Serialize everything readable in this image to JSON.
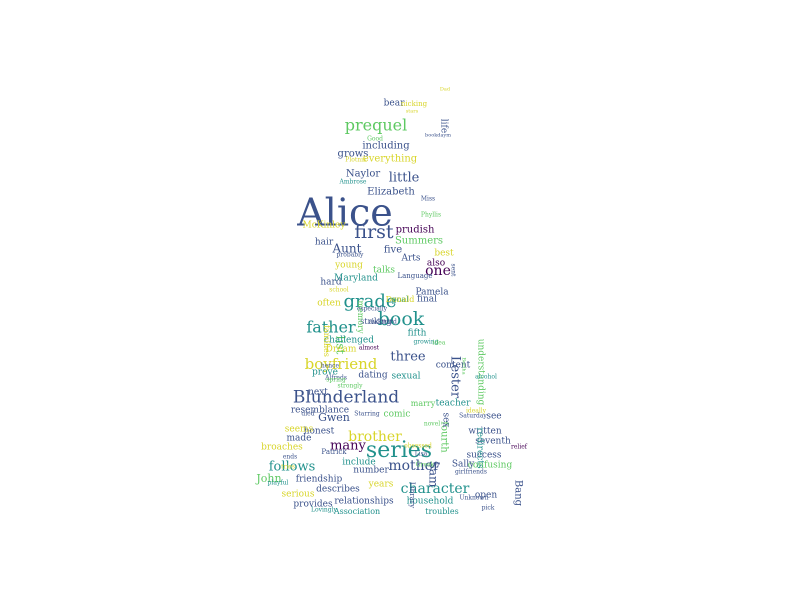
{
  "palette": {
    "dark_purple": "#440154",
    "indigo": "#3b528b",
    "teal": "#21918c",
    "green": "#5ec962",
    "yellow": "#d8d52a"
  },
  "words": [
    {
      "text": "Alice",
      "color": "#3b528b"
    },
    {
      "text": "series",
      "color": "#21918c"
    },
    {
      "text": "Blunderland",
      "color": "#3b528b"
    },
    {
      "text": "grade",
      "color": "#21918c"
    },
    {
      "text": "first",
      "color": "#3b528b"
    },
    {
      "text": "book",
      "color": "#21918c"
    },
    {
      "text": "prequel",
      "color": "#5ec962"
    },
    {
      "text": "father",
      "color": "#21918c"
    },
    {
      "text": "boyfriend",
      "color": "#d8d52a"
    },
    {
      "text": "brother",
      "color": "#d8d52a"
    },
    {
      "text": "mother",
      "color": "#3b528b"
    },
    {
      "text": "character",
      "color": "#21918c"
    },
    {
      "text": "Aunt",
      "color": "#3b528b"
    },
    {
      "text": "one",
      "color": "#440154"
    },
    {
      "text": "many",
      "color": "#440154"
    },
    {
      "text": "follows",
      "color": "#21918c"
    },
    {
      "text": "three",
      "color": "#3b528b"
    },
    {
      "text": "Lester",
      "color": "#3b528b"
    },
    {
      "text": "little",
      "color": "#3b528b"
    },
    {
      "text": "list",
      "color": "#5ec962"
    },
    {
      "text": "Naylor",
      "color": "#3b528b"
    },
    {
      "text": "Elizabeth",
      "color": "#3b528b"
    },
    {
      "text": "including",
      "color": "#3b528b"
    },
    {
      "text": "grows",
      "color": "#3b528b"
    },
    {
      "text": "everything",
      "color": "#d8d52a"
    },
    {
      "text": "prudish",
      "color": "#440154"
    },
    {
      "text": "Summers",
      "color": "#5ec962"
    },
    {
      "text": "hair",
      "color": "#3b528b"
    },
    {
      "text": "five",
      "color": "#3b528b"
    },
    {
      "text": "best",
      "color": "#d8d52a"
    },
    {
      "text": "young",
      "color": "#d8d52a"
    },
    {
      "text": "talks",
      "color": "#5ec962"
    },
    {
      "text": "Maryland",
      "color": "#21918c"
    },
    {
      "text": "hard",
      "color": "#3b528b"
    },
    {
      "text": "often",
      "color": "#d8d52a"
    },
    {
      "text": "Pamela",
      "color": "#3b528b"
    },
    {
      "text": "final",
      "color": "#3b528b"
    },
    {
      "text": "striking",
      "color": "#3b528b"
    },
    {
      "text": "fifth",
      "color": "#21918c"
    },
    {
      "text": "challenged",
      "color": "#21918c"
    },
    {
      "text": "Dream",
      "color": "#d8d52a"
    },
    {
      "text": "prove",
      "color": "#21918c"
    },
    {
      "text": "dating",
      "color": "#3b528b"
    },
    {
      "text": "sexual",
      "color": "#21918c"
    },
    {
      "text": "content",
      "color": "#3b528b"
    },
    {
      "text": "next",
      "color": "#3b528b"
    },
    {
      "text": "resemblance",
      "color": "#3b528b"
    },
    {
      "text": "Gwen",
      "color": "#3b528b"
    },
    {
      "text": "comic",
      "color": "#5ec962"
    },
    {
      "text": "teacher",
      "color": "#21918c"
    },
    {
      "text": "see",
      "color": "#3b528b"
    },
    {
      "text": "honest",
      "color": "#3b528b"
    },
    {
      "text": "seems",
      "color": "#d8d52a"
    },
    {
      "text": "made",
      "color": "#3b528b"
    },
    {
      "text": "broaches",
      "color": "#d8d52a"
    },
    {
      "text": "written",
      "color": "#3b528b"
    },
    {
      "text": "seventh",
      "color": "#3b528b"
    },
    {
      "text": "success",
      "color": "#3b528b"
    },
    {
      "text": "confusing",
      "color": "#5ec962"
    },
    {
      "text": "include",
      "color": "#21918c"
    },
    {
      "text": "number",
      "color": "#3b528b"
    },
    {
      "text": "friendship",
      "color": "#3b528b"
    },
    {
      "text": "John",
      "color": "#5ec962"
    },
    {
      "text": "describes",
      "color": "#3b528b"
    },
    {
      "text": "years",
      "color": "#d8d52a"
    },
    {
      "text": "Sally",
      "color": "#3b528b"
    },
    {
      "text": "Sam",
      "color": "#3b528b"
    },
    {
      "text": "household",
      "color": "#21918c"
    },
    {
      "text": "relationships",
      "color": "#3b528b"
    },
    {
      "text": "serious",
      "color": "#d8d52a"
    },
    {
      "text": "provides",
      "color": "#3b528b"
    },
    {
      "text": "Association",
      "color": "#21918c"
    },
    {
      "text": "troubles",
      "color": "#21918c"
    },
    {
      "text": "open",
      "color": "#3b528b"
    },
    {
      "text": "Bang",
      "color": "#3b528b"
    },
    {
      "text": "fourth",
      "color": "#5ec962"
    },
    {
      "text": "sex",
      "color": "#3b528b"
    },
    {
      "text": "redirects",
      "color": "#21918c"
    },
    {
      "text": "understanding",
      "color": "#5ec962"
    },
    {
      "text": "memory",
      "color": "#5ec962"
    },
    {
      "text": "families",
      "color": "#d8d52a"
    },
    {
      "text": "life",
      "color": "#3b528b"
    },
    {
      "text": "bear",
      "color": "#3b528b"
    },
    {
      "text": "McKinley",
      "color": "#d8d52a"
    },
    {
      "text": "Arts",
      "color": "#3b528b"
    },
    {
      "text": "also",
      "color": "#440154"
    },
    {
      "text": "Language",
      "color": "#3b528b"
    },
    {
      "text": "Patrick",
      "color": "#3b528b"
    },
    {
      "text": "marry",
      "color": "#5ec962"
    },
    {
      "text": "Library",
      "color": "#3b528b"
    },
    {
      "text": "nicking",
      "color": "#d8d52a"
    },
    {
      "text": "Miss",
      "color": "#3b528b"
    },
    {
      "text": "Phyllis",
      "color": "#5ec962"
    },
    {
      "text": "Good",
      "color": "#5ec962"
    },
    {
      "text": "Plotnik",
      "color": "#d8d52a"
    },
    {
      "text": "Ambrose",
      "color": "#21918c"
    },
    {
      "text": "Starring",
      "color": "#3b528b"
    },
    {
      "text": "girlfriends",
      "color": "#3b528b"
    },
    {
      "text": "relief",
      "color": "#440154"
    },
    {
      "text": "Lovingly",
      "color": "#21918c"
    },
    {
      "text": "Dad",
      "color": "#d8d52a"
    },
    {
      "text": "stars",
      "color": "#d8d52a"
    },
    {
      "text": "bookdaym",
      "color": "#3b528b"
    },
    {
      "text": "died",
      "color": "#3b528b"
    },
    {
      "text": "growing",
      "color": "#21918c"
    },
    {
      "text": "strongly",
      "color": "#5ec962"
    },
    {
      "text": "Alfreds",
      "color": "#3b528b"
    },
    {
      "text": "especially",
      "color": "#3b528b"
    },
    {
      "text": "sent",
      "color": "#3b528b"
    },
    {
      "text": "Bertha",
      "color": "#5ec962"
    },
    {
      "text": "alcohol",
      "color": "#21918c"
    },
    {
      "text": "school",
      "color": "#d8d52a"
    },
    {
      "text": "probably",
      "color": "#3b528b"
    },
    {
      "text": "almost",
      "color": "#440154"
    },
    {
      "text": "awkward",
      "color": "#3b528b"
    },
    {
      "text": "idea",
      "color": "#5ec962"
    },
    {
      "text": "ends",
      "color": "#3b528b"
    },
    {
      "text": "tries",
      "color": "#d8d52a"
    },
    {
      "text": "playful",
      "color": "#21918c"
    },
    {
      "text": "pick",
      "color": "#3b528b"
    },
    {
      "text": "Unknown",
      "color": "#3b528b"
    },
    {
      "text": "novel",
      "color": "#5ec962"
    },
    {
      "text": "obsessed",
      "color": "#d8d52a"
    },
    {
      "text": "Lisa",
      "color": "#3b528b"
    },
    {
      "text": "Greek",
      "color": "#5ec962"
    },
    {
      "text": "hence",
      "color": "#3b528b"
    },
    {
      "text": "ideally",
      "color": "#d8d52a"
    },
    {
      "text": "Saturday",
      "color": "#3b528b"
    },
    {
      "text": "spring",
      "color": "#5ec962"
    },
    {
      "text": "goal",
      "color": "#21918c"
    },
    {
      "text": "Donald",
      "color": "#d8d52a"
    }
  ]
}
